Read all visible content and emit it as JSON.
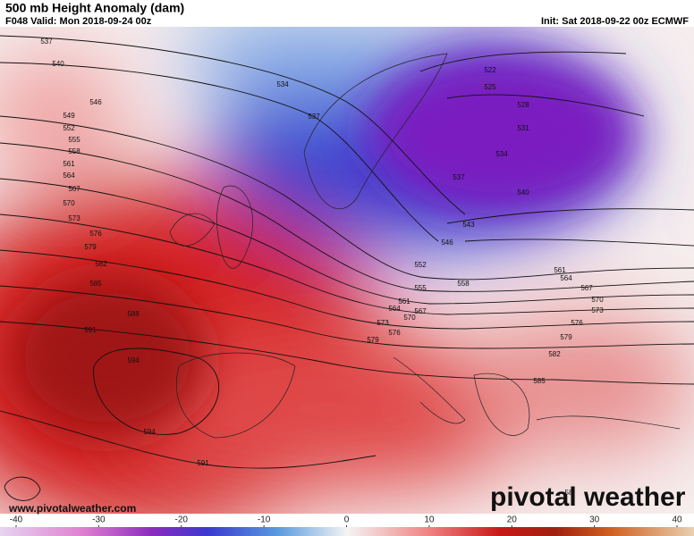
{
  "header": {
    "title": "500 mb Height Anomaly (dam)",
    "valid": "F048 Valid: Mon 2018-09-24 00z",
    "init": "Init: Sat 2018-09-22 00z ECMWF"
  },
  "contour_labels": [
    "537",
    "540",
    "534",
    "546",
    "537",
    "549",
    "552",
    "555",
    "558",
    "561",
    "564",
    "567",
    "570",
    "573",
    "576",
    "579",
    "582",
    "585",
    "588",
    "591",
    "594",
    "594",
    "591",
    "522",
    "525",
    "528",
    "531",
    "534",
    "537",
    "540",
    "543",
    "546",
    "552",
    "555",
    "558",
    "561",
    "564",
    "567",
    "570",
    "573",
    "576",
    "579",
    "582",
    "585",
    "561",
    "564",
    "567",
    "570",
    "573",
    "576",
    "579",
    "58"
  ],
  "website": "www.pivotalweather.com",
  "logo": "pivotal weather",
  "colorbar": {
    "ticks": [
      -40,
      -30,
      -20,
      -10,
      0,
      10,
      20,
      30,
      40
    ]
  }
}
